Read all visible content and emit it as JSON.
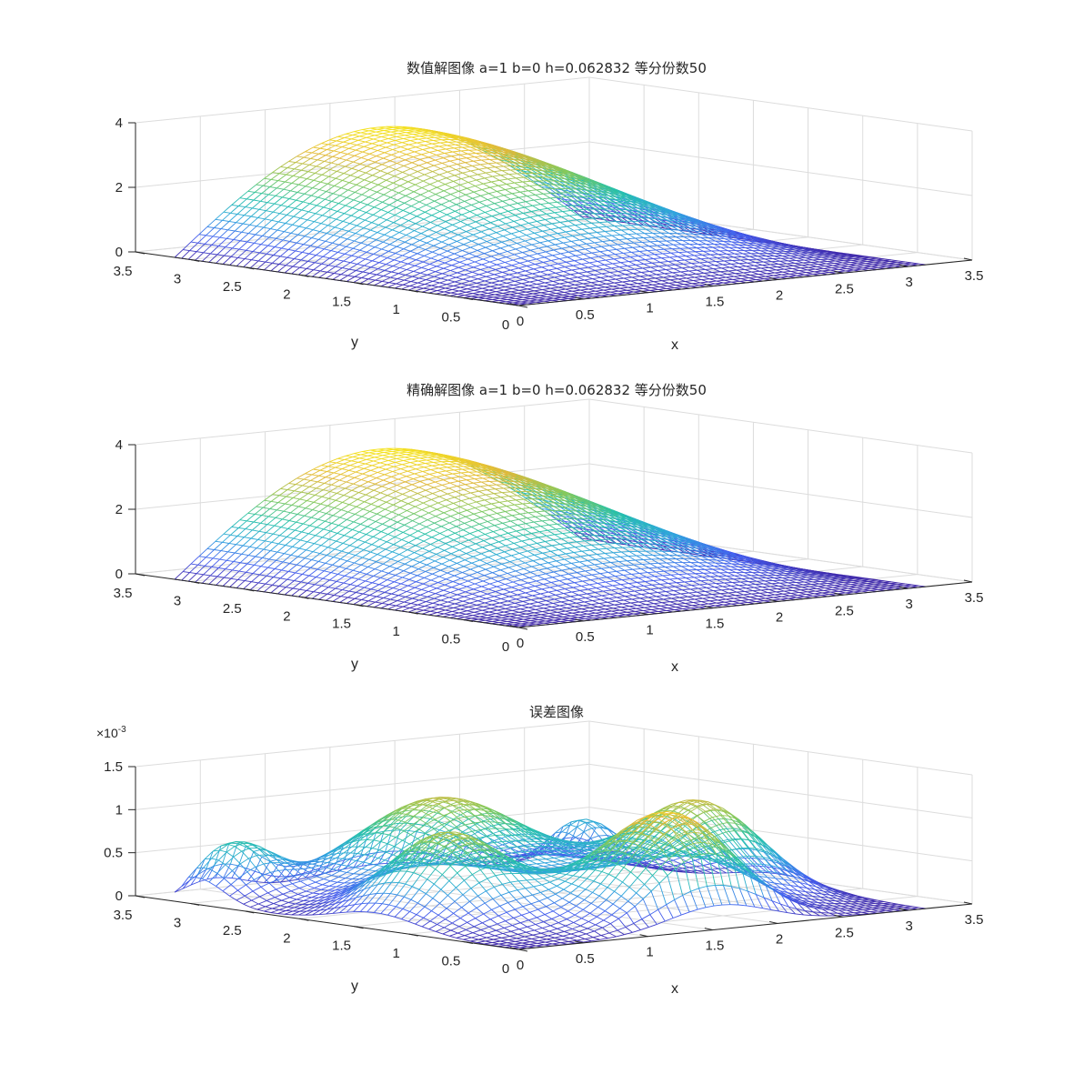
{
  "chart_data": [
    {
      "type": "surface-mesh",
      "title": "数值解图像  a=1  b=0  h=0.062832  等分份数50",
      "xlabel": "x",
      "ylabel": "y",
      "xlim": [
        0,
        3.5
      ],
      "ylim": [
        0,
        3.5
      ],
      "zlim": [
        0,
        4
      ],
      "xticks": [
        "0",
        "0.5",
        "1",
        "1.5",
        "2",
        "2.5",
        "3",
        "3.5"
      ],
      "yticks": [
        "0",
        "0.5",
        "1",
        "1.5",
        "2",
        "2.5",
        "3",
        "3.5"
      ],
      "zticks": [
        "0",
        "2",
        "4"
      ],
      "z_exponent": "",
      "domain": [
        0,
        3.1416
      ],
      "divisions": 50,
      "surface": "u(x,y) = (sin x)(1 + sin(y/2))^2 ... peak ≈ 3.4 near x≈1.57, y≈3.14",
      "z_max": 3.4,
      "colormap": [
        "#3e26a8",
        "#4560f0",
        "#2fa7dc",
        "#26c1a8",
        "#87c95a",
        "#e2b83a",
        "#f5e31f"
      ],
      "grid": true
    },
    {
      "type": "surface-mesh",
      "title": "精确解图像  a=1  b=0  h=0.062832  等分份数50",
      "xlabel": "x",
      "ylabel": "y",
      "xlim": [
        0,
        3.5
      ],
      "ylim": [
        0,
        3.5
      ],
      "zlim": [
        0,
        4
      ],
      "xticks": [
        "0",
        "0.5",
        "1",
        "1.5",
        "2",
        "2.5",
        "3",
        "3.5"
      ],
      "yticks": [
        "0",
        "0.5",
        "1",
        "1.5",
        "2",
        "2.5",
        "3",
        "3.5"
      ],
      "zticks": [
        "0",
        "2",
        "4"
      ],
      "z_exponent": "",
      "domain": [
        0,
        3.1416
      ],
      "divisions": 50,
      "z_max": 3.4,
      "colormap": [
        "#3e26a8",
        "#4560f0",
        "#2fa7dc",
        "#26c1a8",
        "#87c95a",
        "#e2b83a",
        "#f5e31f"
      ],
      "grid": true
    },
    {
      "type": "surface-mesh",
      "title": "误差图像",
      "xlabel": "x",
      "ylabel": "y",
      "xlim": [
        0,
        3.5
      ],
      "ylim": [
        0,
        3.5
      ],
      "zlim": [
        0,
        0.0015
      ],
      "xticks": [
        "0",
        "0.5",
        "1",
        "1.5",
        "2",
        "2.5",
        "3",
        "3.5"
      ],
      "yticks": [
        "0",
        "0.5",
        "1",
        "1.5",
        "2",
        "2.5",
        "3",
        "3.5"
      ],
      "zticks": [
        "0",
        "0.5",
        "1",
        "1.5"
      ],
      "z_exponent_base": "×10",
      "z_exponent_power": "-3",
      "domain": [
        0,
        3.1416
      ],
      "divisions": 50,
      "z_max": 0.0014,
      "colormap": [
        "#3e26a8",
        "#4560f0",
        "#2fa7dc",
        "#26c1a8",
        "#87c95a",
        "#e2b83a",
        "#f5e31f"
      ],
      "grid": true
    }
  ]
}
